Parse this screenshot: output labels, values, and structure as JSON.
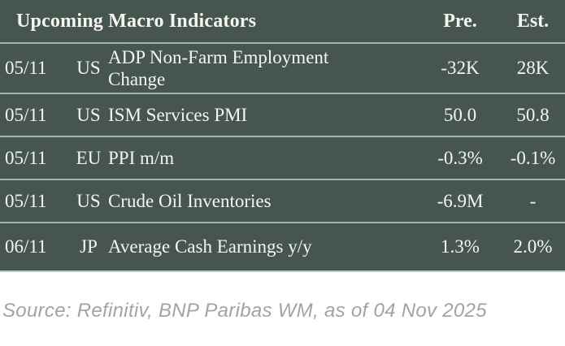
{
  "table": {
    "title": "Upcoming Macro Indicators",
    "columns": {
      "pre": "Pre.",
      "est": "Est."
    },
    "rows": [
      {
        "date": "05/11",
        "country": "US",
        "indicator": "ADP Non-Farm Employment Change",
        "pre": "-32K",
        "est": "28K"
      },
      {
        "date": "05/11",
        "country": "US",
        "indicator": "ISM Services PMI",
        "pre": "50.0",
        "est": "50.8"
      },
      {
        "date": "05/11",
        "country": "EU",
        "indicator": "PPI m/m",
        "pre": "-0.3%",
        "est": "-0.1%"
      },
      {
        "date": "05/11",
        "country": "US",
        "indicator": "Crude Oil Inventories",
        "pre": "-6.9M",
        "est": "-"
      },
      {
        "date": "06/11",
        "country": "JP",
        "indicator": "Average Cash Earnings y/y",
        "pre": "1.3%",
        "est": "2.0%"
      }
    ]
  },
  "footer": {
    "source": "Source: Refinitiv, BNP Paribas WM, as of 04 Nov 2025"
  },
  "colors": {
    "table_background": "#46564F",
    "table_text": "#F4F5F1",
    "row_separator": "#A4B3AC",
    "table_bottom_border": "#B8CABF",
    "source_text": "#A3A3A3",
    "page_background": "#FFFFFF"
  }
}
